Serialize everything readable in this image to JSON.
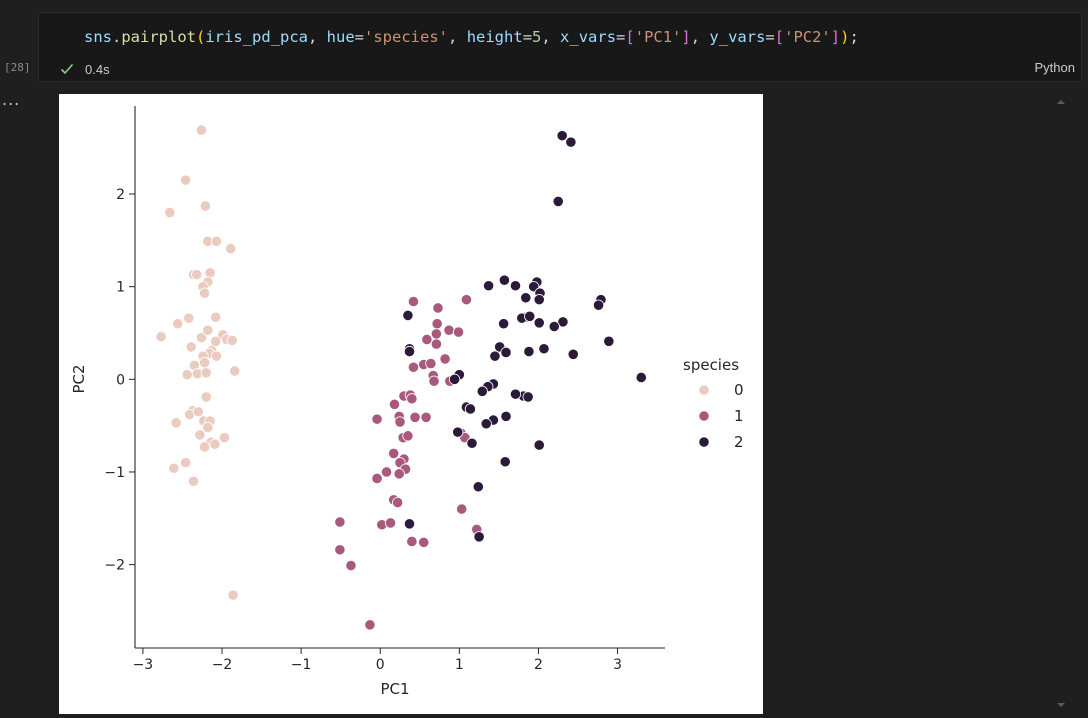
{
  "cell": {
    "execution_count": "[28]",
    "code": "sns.pairplot(iris_pd_pca, hue='species', height=5, x_vars=['PC1'], y_vars=['PC2']);",
    "code_tokens": [
      {
        "text": "sns",
        "color": "#9cdcfe"
      },
      {
        "text": ".",
        "color": "#d4d4d4"
      },
      {
        "text": "pairplot",
        "color": "#dcdcaa"
      },
      {
        "text": "(",
        "color": "#ffd700"
      },
      {
        "text": "iris_pd_pca",
        "color": "#9cdcfe"
      },
      {
        "text": ", ",
        "color": "#d4d4d4"
      },
      {
        "text": "hue",
        "color": "#9cdcfe"
      },
      {
        "text": "=",
        "color": "#d4d4d4"
      },
      {
        "text": "'species'",
        "color": "#ce9178"
      },
      {
        "text": ", ",
        "color": "#d4d4d4"
      },
      {
        "text": "height",
        "color": "#9cdcfe"
      },
      {
        "text": "=",
        "color": "#d4d4d4"
      },
      {
        "text": "5",
        "color": "#b5cea8"
      },
      {
        "text": ", ",
        "color": "#d4d4d4"
      },
      {
        "text": "x_vars",
        "color": "#9cdcfe"
      },
      {
        "text": "=",
        "color": "#d4d4d4"
      },
      {
        "text": "[",
        "color": "#da70d6"
      },
      {
        "text": "'PC1'",
        "color": "#ce9178"
      },
      {
        "text": "]",
        "color": "#da70d6"
      },
      {
        "text": ", ",
        "color": "#d4d4d4"
      },
      {
        "text": "y_vars",
        "color": "#9cdcfe"
      },
      {
        "text": "=",
        "color": "#d4d4d4"
      },
      {
        "text": "[",
        "color": "#da70d6"
      },
      {
        "text": "'PC2'",
        "color": "#ce9178"
      },
      {
        "text": "]",
        "color": "#da70d6"
      },
      {
        "text": ")",
        "color": "#ffd700"
      },
      {
        "text": ";",
        "color": "#d4d4d4"
      }
    ],
    "status_icon": "check-icon",
    "status_color": "#89d185",
    "exec_time": "0.4s",
    "language": "Python",
    "output_menu": "..."
  },
  "chart_data": {
    "type": "scatter",
    "xlabel": "PC1",
    "ylabel": "PC2",
    "xlim": [
      -3.1,
      3.6
    ],
    "ylim": [
      -2.9,
      2.95
    ],
    "xticks": [
      -3,
      -2,
      -1,
      0,
      1,
      2,
      3
    ],
    "yticks": [
      -2,
      -1,
      0,
      1,
      2
    ],
    "xtick_labels": [
      "−3",
      "−2",
      "−1",
      "0",
      "1",
      "2",
      "3"
    ],
    "ytick_labels": [
      "−2",
      "−1",
      "0",
      "1",
      "2"
    ],
    "grid": false,
    "legend": {
      "title": "species",
      "placement": "right"
    },
    "series": [
      {
        "name": "0",
        "color": "#ebcbc0",
        "points": [
          [
            -2.26,
            2.69
          ],
          [
            -2.46,
            2.15
          ],
          [
            -2.66,
            1.8
          ],
          [
            -2.21,
            1.87
          ],
          [
            -2.18,
            1.49
          ],
          [
            -2.07,
            1.49
          ],
          [
            -1.89,
            1.41
          ],
          [
            -2.36,
            1.13
          ],
          [
            -2.32,
            1.13
          ],
          [
            -2.15,
            1.15
          ],
          [
            -2.18,
            1.05
          ],
          [
            -2.24,
            1.0
          ],
          [
            -2.22,
            0.93
          ],
          [
            -2.42,
            0.66
          ],
          [
            -2.56,
            0.6
          ],
          [
            -2.08,
            0.67
          ],
          [
            -2.77,
            0.46
          ],
          [
            -2.26,
            0.45
          ],
          [
            -2.18,
            0.53
          ],
          [
            -1.99,
            0.48
          ],
          [
            -2.08,
            0.41
          ],
          [
            -1.94,
            0.43
          ],
          [
            -1.87,
            0.42
          ],
          [
            -2.39,
            0.35
          ],
          [
            -2.13,
            0.31
          ],
          [
            -2.16,
            0.28
          ],
          [
            -2.24,
            0.25
          ],
          [
            -2.07,
            0.25
          ],
          [
            -2.35,
            0.15
          ],
          [
            -2.22,
            0.18
          ],
          [
            -2.44,
            0.05
          ],
          [
            -2.31,
            0.06
          ],
          [
            -2.2,
            0.07
          ],
          [
            -1.84,
            0.09
          ],
          [
            -2.2,
            -0.19
          ],
          [
            -2.37,
            -0.34
          ],
          [
            -2.41,
            -0.38
          ],
          [
            -2.3,
            -0.35
          ],
          [
            -2.23,
            -0.45
          ],
          [
            -2.15,
            -0.45
          ],
          [
            -2.18,
            -0.52
          ],
          [
            -2.58,
            -0.47
          ],
          [
            -2.28,
            -0.6
          ],
          [
            -1.97,
            -0.63
          ],
          [
            -2.14,
            -0.68
          ],
          [
            -2.22,
            -0.73
          ],
          [
            -2.09,
            -0.7
          ],
          [
            -2.46,
            -0.9
          ],
          [
            -2.61,
            -0.96
          ],
          [
            -2.36,
            -1.1
          ],
          [
            -1.86,
            -2.33
          ]
        ]
      },
      {
        "name": "1",
        "color": "#a9587e",
        "points": [
          [
            0.42,
            0.84
          ],
          [
            1.09,
            0.86
          ],
          [
            0.73,
            0.77
          ],
          [
            0.72,
            0.6
          ],
          [
            0.71,
            0.49
          ],
          [
            0.87,
            0.53
          ],
          [
            0.71,
            0.38
          ],
          [
            0.99,
            0.51
          ],
          [
            0.59,
            0.43
          ],
          [
            0.82,
            0.22
          ],
          [
            0.55,
            0.16
          ],
          [
            0.64,
            0.17
          ],
          [
            0.42,
            0.13
          ],
          [
            0.67,
            0.04
          ],
          [
            0.68,
            -0.02
          ],
          [
            0.88,
            -0.02
          ],
          [
            0.3,
            -0.18
          ],
          [
            0.38,
            -0.17
          ],
          [
            0.4,
            -0.21
          ],
          [
            0.18,
            -0.27
          ],
          [
            0.44,
            -0.41
          ],
          [
            0.58,
            -0.41
          ],
          [
            0.24,
            -0.4
          ],
          [
            -0.04,
            -0.43
          ],
          [
            0.25,
            -0.46
          ],
          [
            1.02,
            -0.58
          ],
          [
            0.29,
            -0.63
          ],
          [
            0.35,
            -0.61
          ],
          [
            1.07,
            -0.63
          ],
          [
            0.17,
            -0.8
          ],
          [
            0.3,
            -0.86
          ],
          [
            0.25,
            -0.9
          ],
          [
            0.32,
            -0.97
          ],
          [
            0.08,
            -1.0
          ],
          [
            -0.04,
            -1.07
          ],
          [
            0.24,
            -1.02
          ],
          [
            0.17,
            -1.3
          ],
          [
            0.22,
            -1.33
          ],
          [
            1.03,
            -1.4
          ],
          [
            -0.51,
            -1.54
          ],
          [
            0.02,
            -1.57
          ],
          [
            0.13,
            -1.55
          ],
          [
            1.22,
            -1.62
          ],
          [
            0.4,
            -1.75
          ],
          [
            0.55,
            -1.76
          ],
          [
            -0.51,
            -1.84
          ],
          [
            -0.37,
            -2.01
          ],
          [
            -0.13,
            -2.65
          ]
        ]
      },
      {
        "name": "2",
        "color": "#2b1a3a",
        "points": [
          [
            2.3,
            2.63
          ],
          [
            2.41,
            2.56
          ],
          [
            2.25,
            1.92
          ],
          [
            1.57,
            1.07
          ],
          [
            1.98,
            1.05
          ],
          [
            1.37,
            1.01
          ],
          [
            1.71,
            1.01
          ],
          [
            1.94,
            1.0
          ],
          [
            2.02,
            0.93
          ],
          [
            1.84,
            0.88
          ],
          [
            2.01,
            0.86
          ],
          [
            2.79,
            0.86
          ],
          [
            2.76,
            0.8
          ],
          [
            0.35,
            0.69
          ],
          [
            1.84,
            0.67
          ],
          [
            1.79,
            0.66
          ],
          [
            1.89,
            0.68
          ],
          [
            2.31,
            0.62
          ],
          [
            2.01,
            0.61
          ],
          [
            1.56,
            0.6
          ],
          [
            2.2,
            0.57
          ],
          [
            2.89,
            0.41
          ],
          [
            2.07,
            0.33
          ],
          [
            1.51,
            0.35
          ],
          [
            1.45,
            0.25
          ],
          [
            1.88,
            0.3
          ],
          [
            2.44,
            0.27
          ],
          [
            0.37,
            0.33
          ],
          [
            0.37,
            0.3
          ],
          [
            1.59,
            0.29
          ],
          [
            3.3,
            0.02
          ],
          [
            1.0,
            0.05
          ],
          [
            0.94,
            0.0
          ],
          [
            1.43,
            -0.05
          ],
          [
            1.36,
            -0.08
          ],
          [
            1.29,
            -0.13
          ],
          [
            1.81,
            -0.18
          ],
          [
            1.71,
            -0.16
          ],
          [
            1.87,
            -0.19
          ],
          [
            1.09,
            -0.3
          ],
          [
            1.14,
            -0.32
          ],
          [
            1.59,
            -0.4
          ],
          [
            1.43,
            -0.44
          ],
          [
            1.34,
            -0.48
          ],
          [
            0.98,
            -0.57
          ],
          [
            1.16,
            -0.69
          ],
          [
            2.01,
            -0.71
          ],
          [
            1.58,
            -0.89
          ],
          [
            1.24,
            -1.16
          ],
          [
            0.37,
            -1.56
          ],
          [
            1.25,
            -1.7
          ]
        ]
      }
    ]
  }
}
